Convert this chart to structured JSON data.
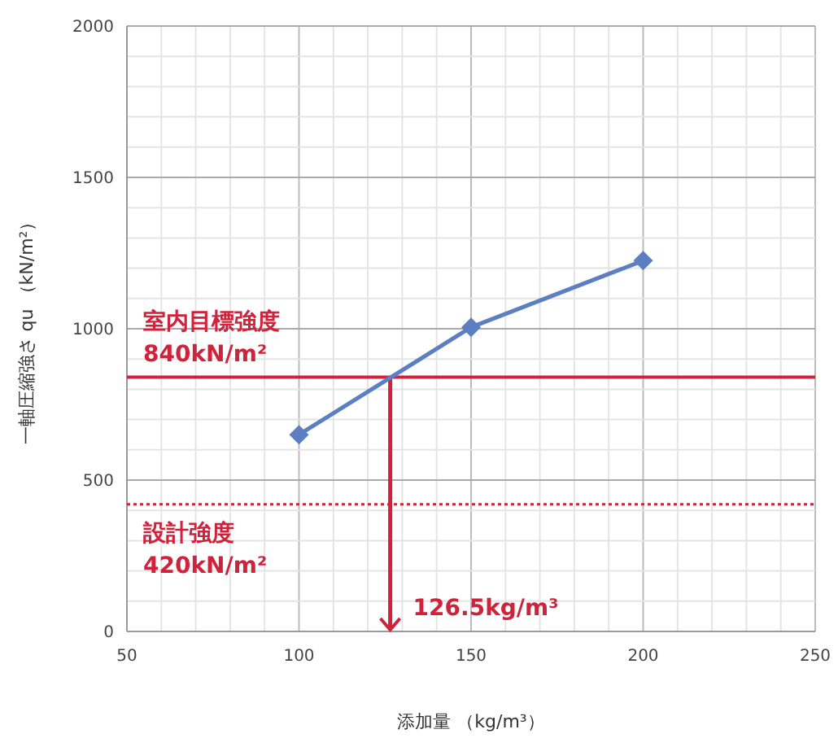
{
  "chart_data": {
    "type": "line",
    "xlabel": "添加量 （kg/m³）",
    "ylabel": "一軸圧縮強さ qu （kN/m²）",
    "x": [
      100,
      150,
      200
    ],
    "series": [
      {
        "color": "#5b7fc0",
        "values": [
          650,
          1005,
          1225
        ]
      }
    ],
    "xlim": [
      50,
      250
    ],
    "xticks": [
      50,
      {
        "value": 60,
        "label": null
      },
      {
        "value": 70,
        "label": null
      },
      {
        "value": 80,
        "label": null
      },
      {
        "value": 90,
        "label": null
      },
      100,
      {
        "value": 110,
        "label": null
      },
      {
        "value": 120,
        "label": null
      },
      {
        "value": 130,
        "label": null
      },
      {
        "value": 140,
        "label": null
      },
      150,
      {
        "value": 160,
        "label": null
      },
      {
        "value": 170,
        "label": null
      },
      {
        "value": 180,
        "label": null
      },
      {
        "value": 190,
        "label": null
      },
      200,
      {
        "value": 210,
        "label": null
      },
      {
        "value": 220,
        "label": null
      },
      {
        "value": 230,
        "label": null
      },
      {
        "value": 240,
        "label": null
      },
      250
    ],
    "ylim": [
      0,
      2000
    ],
    "yticks": [
      0,
      {
        "value": 100,
        "label": null
      },
      {
        "value": 200,
        "label": null
      },
      {
        "value": 300,
        "label": null
      },
      {
        "value": 400,
        "label": null
      },
      500,
      {
        "value": 600,
        "label": null
      },
      {
        "value": 700,
        "label": null
      },
      {
        "value": 800,
        "label": null
      },
      {
        "value": 900,
        "label": null
      },
      1000,
      {
        "value": 1100,
        "label": null
      },
      {
        "value": 1200,
        "label": null
      },
      {
        "value": 1300,
        "label": null
      },
      {
        "value": 1400,
        "label": null
      },
      1500,
      {
        "value": 1600,
        "label": null
      },
      {
        "value": 1700,
        "label": null
      },
      {
        "value": 1800,
        "label": null
      },
      {
        "value": 1900,
        "label": null
      },
      2000
    ],
    "grid": true,
    "marker": "diamond",
    "line_style": "solid",
    "ref_lines": [
      {
        "axis": "y",
        "value": 840,
        "label": "室内目標強度\n840kN/m²",
        "color": "#d0223a",
        "line_style": "solid"
      },
      {
        "axis": "y",
        "value": 420,
        "label": "設計強度\n420kN/m²",
        "color": "#d0223a",
        "line_style": "dotted"
      },
      {
        "axis": "x",
        "value": 126.5,
        "label": "126.5kg/m³",
        "color": "#d0223a",
        "line_style": "solid"
      }
    ]
  }
}
